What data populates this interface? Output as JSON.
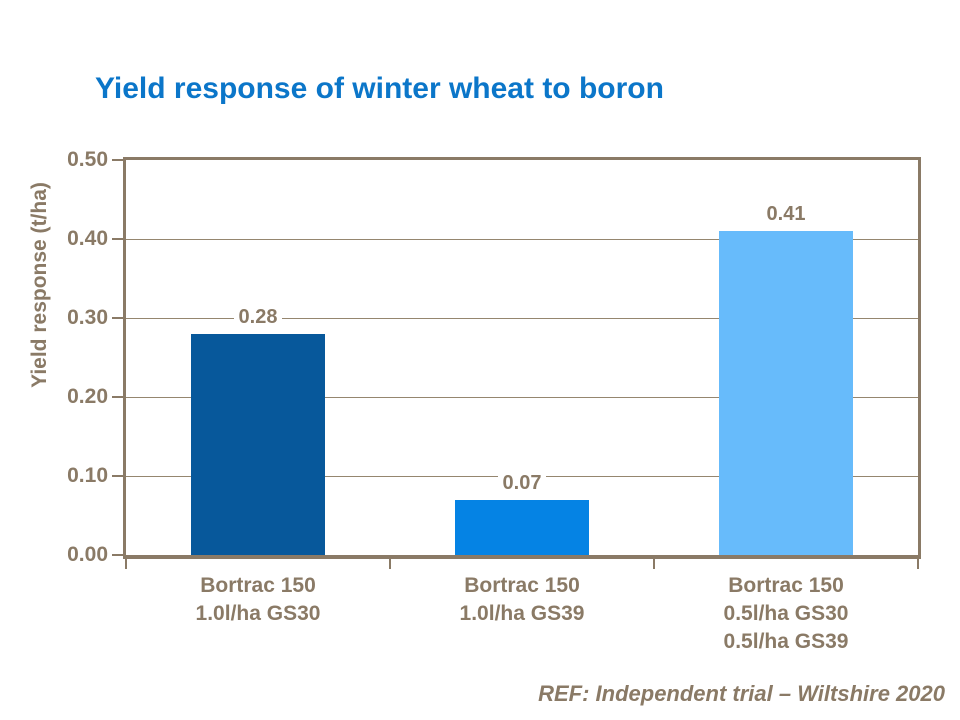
{
  "title": {
    "text": "Yield response of winter wheat to boron",
    "color": "#0B76C9"
  },
  "chart_data": {
    "type": "bar",
    "title": "Yield response of winter wheat to boron",
    "xlabel": "",
    "ylabel": "Yield response (t/ha)",
    "ylim": [
      0,
      0.5
    ],
    "ytick_step": 0.1,
    "yticks": [
      {
        "value": 0.0,
        "label": "0.00"
      },
      {
        "value": 0.1,
        "label": "0.10"
      },
      {
        "value": 0.2,
        "label": "0.20"
      },
      {
        "value": 0.3,
        "label": "0.30"
      },
      {
        "value": 0.4,
        "label": "0.40"
      },
      {
        "value": 0.5,
        "label": "0.50"
      }
    ],
    "grid": true,
    "legend": "none",
    "axis_color": "#8A7A66",
    "text_color": "#8A7A66",
    "bars": [
      {
        "category_lines": [
          "Bortrac 150",
          "1.0l/ha GS30"
        ],
        "value": 0.28,
        "data_label": "0.28",
        "color": "#07589B"
      },
      {
        "category_lines": [
          "Bortrac 150",
          "1.0l/ha GS39"
        ],
        "value": 0.07,
        "data_label": "0.07",
        "color": "#0583E4"
      },
      {
        "category_lines": [
          "Bortrac 150",
          "0.5l/ha GS30",
          "0.5l/ha GS39"
        ],
        "value": 0.41,
        "data_label": "0.41",
        "color": "#67BBFB"
      }
    ]
  },
  "footnote": {
    "text": "REF: Independent trial – Wiltshire 2020"
  }
}
